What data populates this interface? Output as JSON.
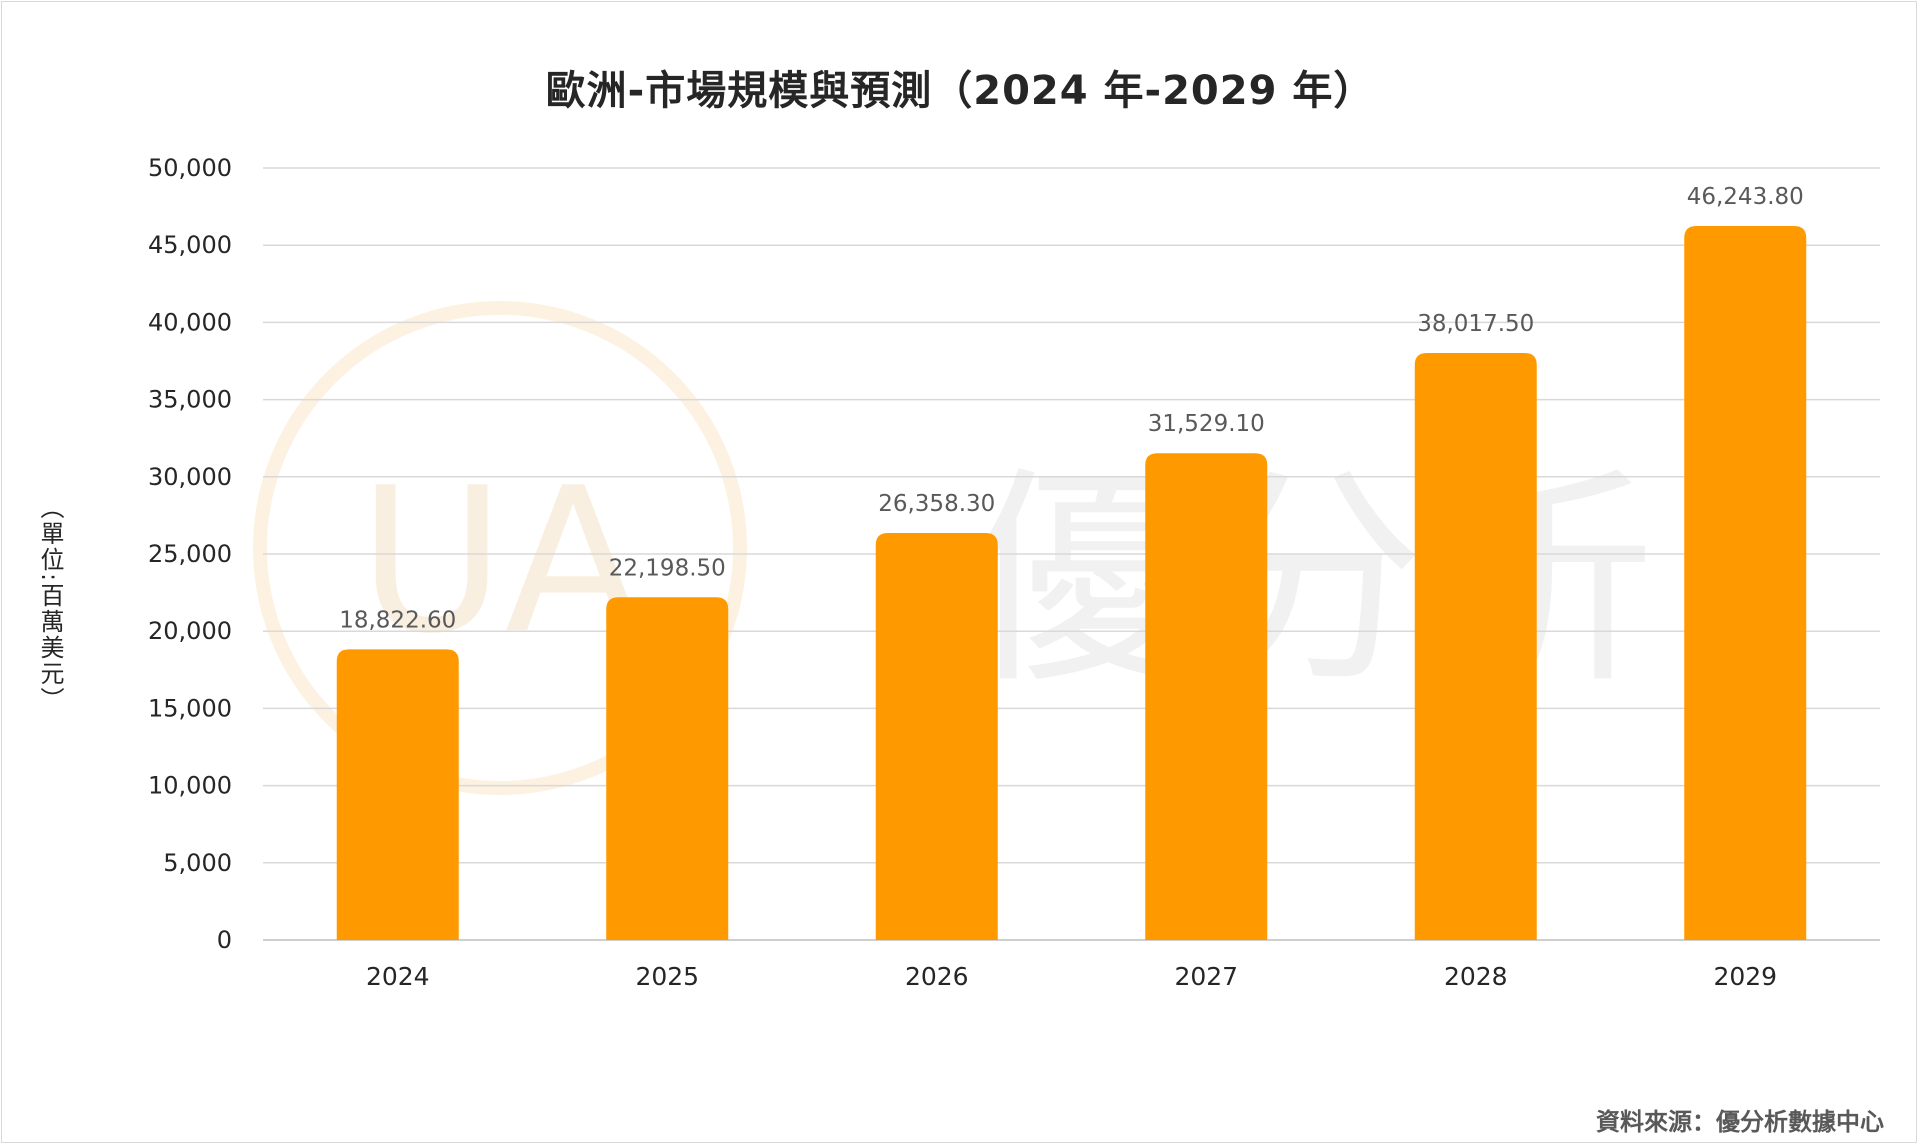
{
  "chart_data": {
    "type": "bar",
    "title": "歐洲-市場規模與預測（2024 年-2029 年）",
    "ylabel": "（單位:百萬美元）",
    "categories": [
      "2024",
      "2025",
      "2026",
      "2027",
      "2028",
      "2029"
    ],
    "values": [
      18822.6,
      22198.5,
      26358.3,
      31529.1,
      38017.5,
      46243.8
    ],
    "data_labels": [
      "18,822.60",
      "22,198.50",
      "26,358.30",
      "31,529.10",
      "38,017.50",
      "46,243.80"
    ],
    "ylim": [
      0,
      50000
    ],
    "yticks": [
      0,
      5000,
      10000,
      15000,
      20000,
      25000,
      30000,
      35000,
      40000,
      45000,
      50000
    ],
    "ytick_labels": [
      "0",
      "5,000",
      "10,000",
      "15,000",
      "20,000",
      "25,000",
      "30,000",
      "35,000",
      "40,000",
      "45,000",
      "50,000"
    ],
    "grid": true,
    "bar_color": "#ff9900",
    "source": "資料來源：優分析數據中心"
  },
  "watermark": {
    "text": "優分析",
    "logo_letters": "UA"
  }
}
